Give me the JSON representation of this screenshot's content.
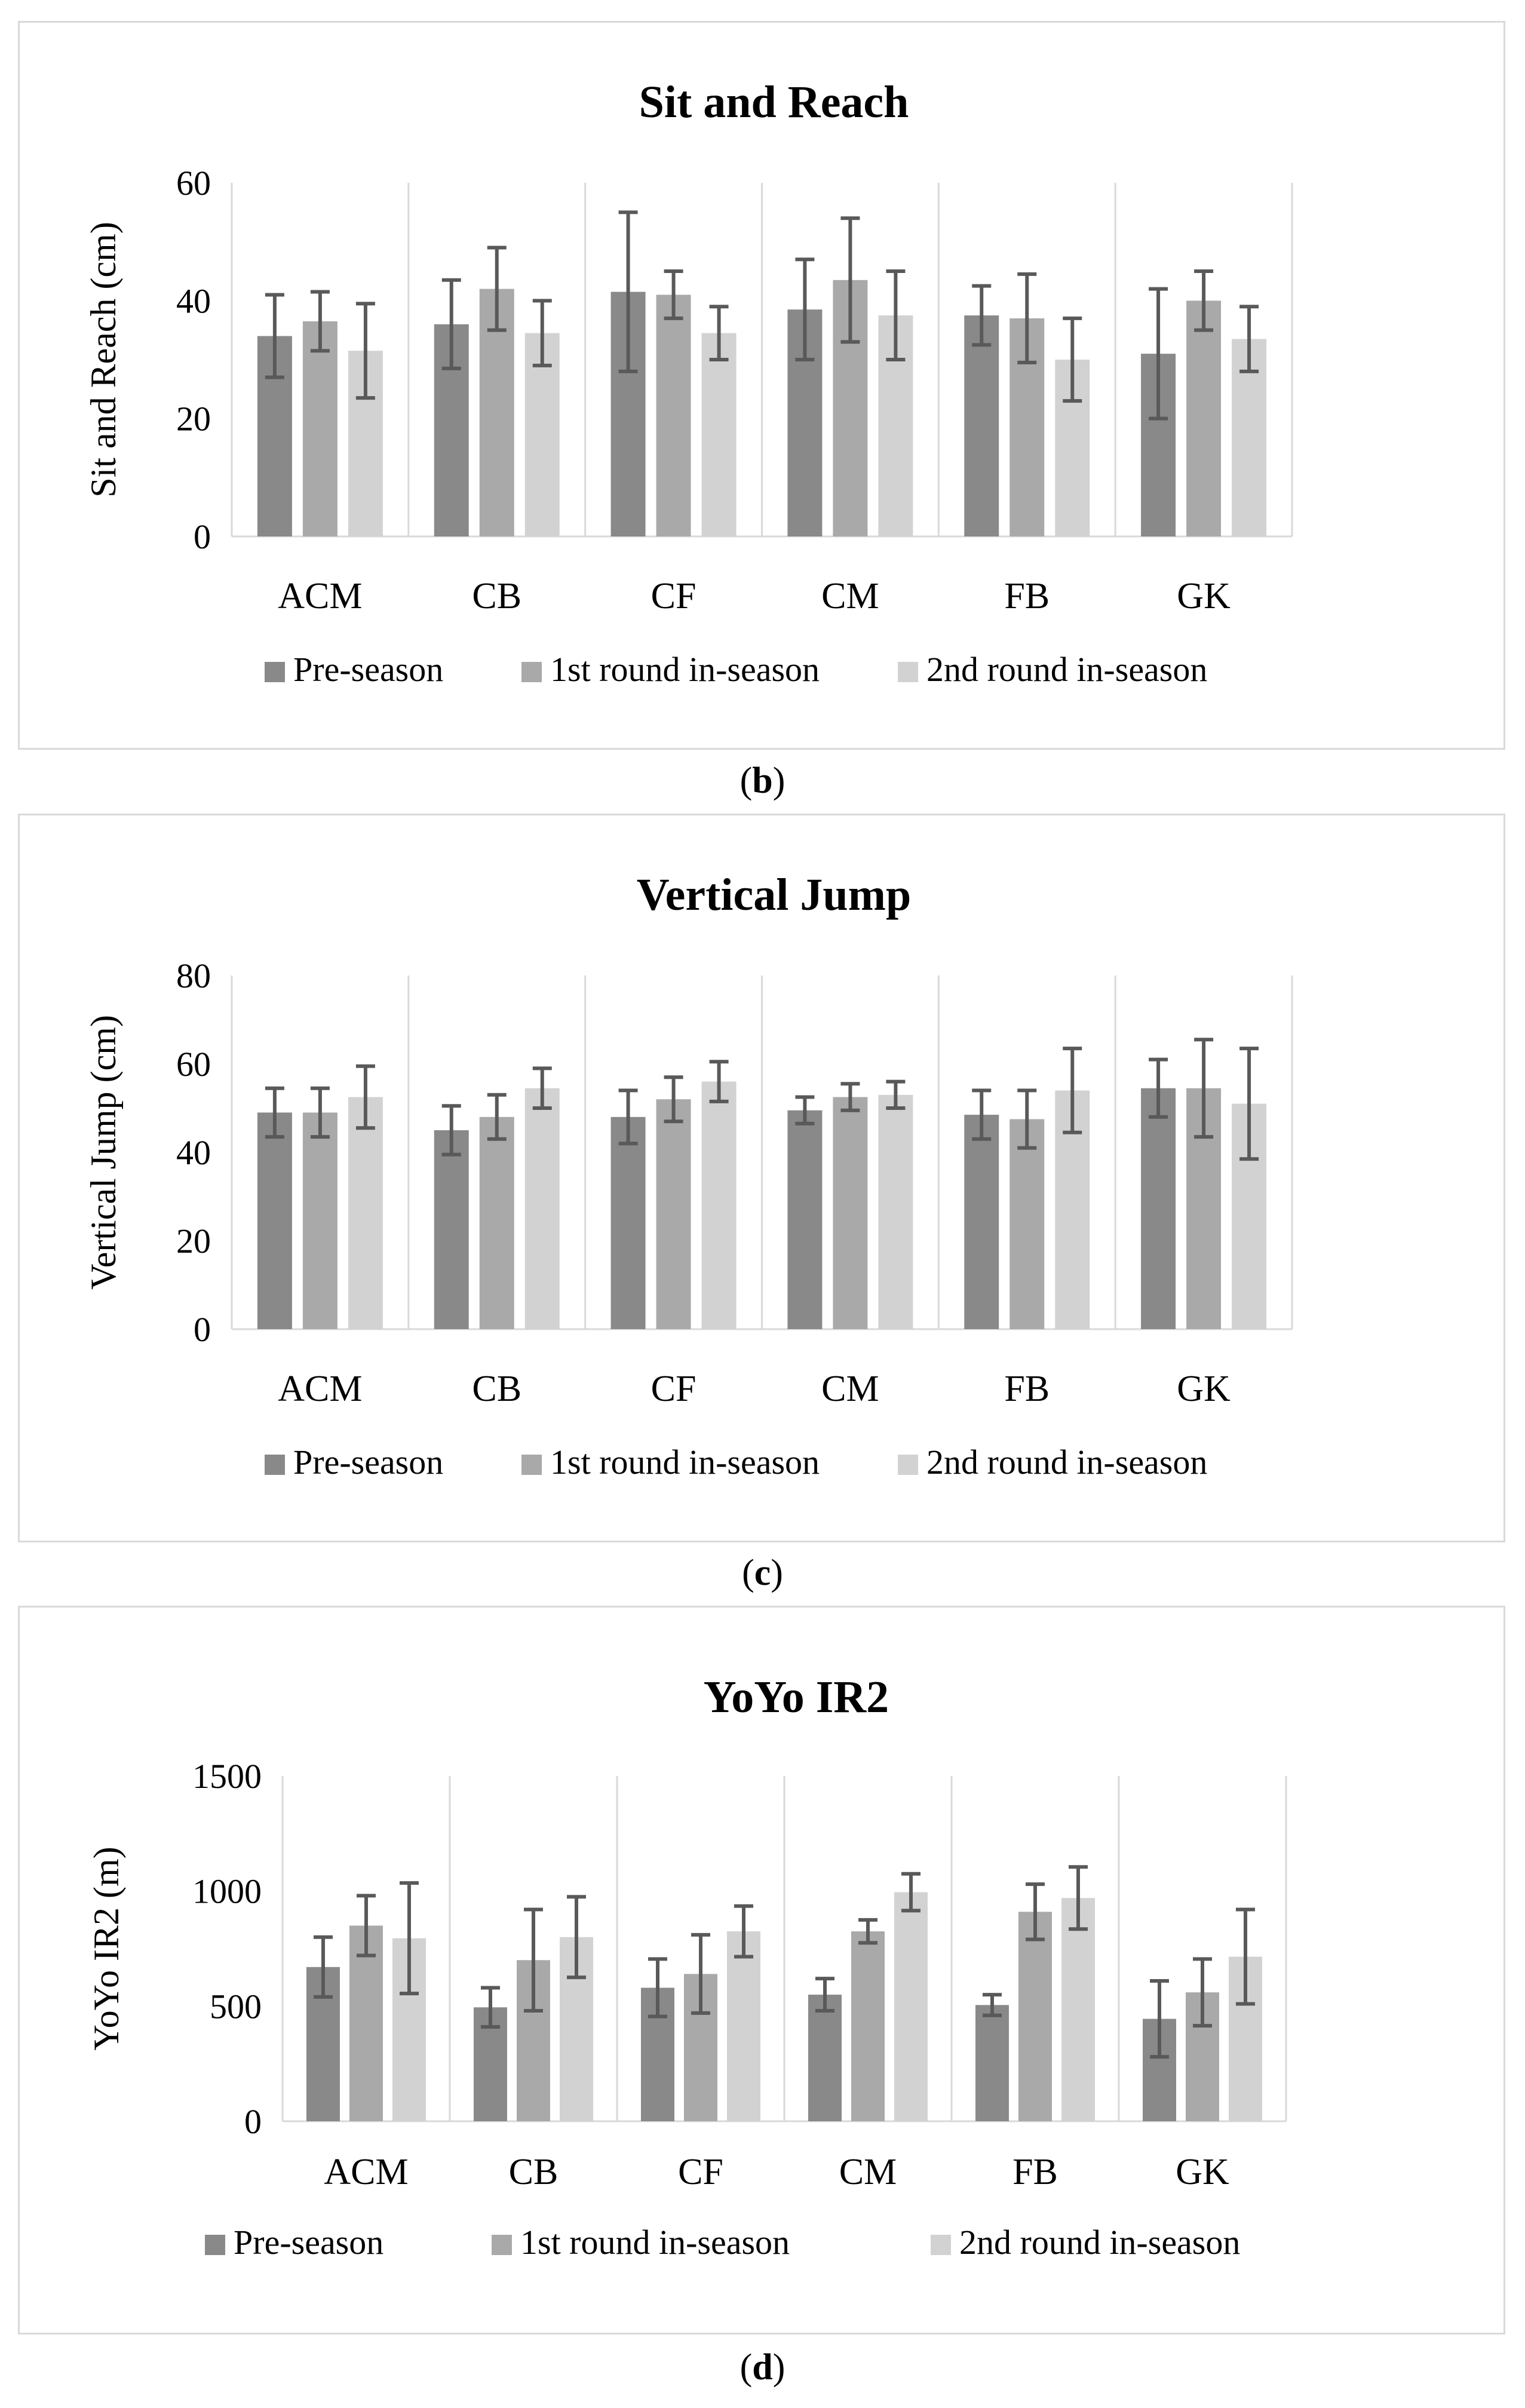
{
  "colors": {
    "pre": "#898989",
    "r1": "#a9a9a9",
    "r2": "#d2d2d2",
    "grid": "#d9d9d9",
    "axis": "#d9d9d9",
    "error": "#595959",
    "text": "#000000"
  },
  "captions": [
    {
      "open": "(",
      "letter": "b",
      "close": ")"
    },
    {
      "open": "(",
      "letter": "c",
      "close": ")"
    },
    {
      "open": "(",
      "letter": "d",
      "close": ")"
    }
  ],
  "chart_data": [
    {
      "type": "bar",
      "title": "Sit and Reach",
      "ylabel": "Sit and Reach (cm)",
      "xlabel": "",
      "ylim": [
        0,
        60
      ],
      "yticks": [
        0,
        20,
        40,
        60
      ],
      "categories": [
        "ACM",
        "CB",
        "CF",
        "CM",
        "FB",
        "GK"
      ],
      "legend": "bottom",
      "series": [
        {
          "name": "Pre-season",
          "values": [
            34,
            36,
            41.5,
            38.5,
            37.5,
            31
          ],
          "errors": [
            7,
            7.5,
            13.5,
            8.5,
            5,
            11
          ]
        },
        {
          "name": "1st round in-season",
          "values": [
            36.5,
            42,
            41,
            43.5,
            37,
            40
          ],
          "errors": [
            5,
            7,
            4,
            10.5,
            7.5,
            5
          ]
        },
        {
          "name": "2nd round in-season",
          "values": [
            31.5,
            34.5,
            34.5,
            37.5,
            30,
            33.5
          ],
          "errors": [
            8,
            5.5,
            4.5,
            7.5,
            7,
            5.5
          ]
        }
      ]
    },
    {
      "type": "bar",
      "title": "Vertical Jump",
      "ylabel": "Vertical Jump (cm)",
      "xlabel": "",
      "ylim": [
        0,
        80
      ],
      "yticks": [
        0,
        20,
        40,
        60,
        80
      ],
      "categories": [
        "ACM",
        "CB",
        "CF",
        "CM",
        "FB",
        "GK"
      ],
      "legend": "bottom",
      "series": [
        {
          "name": "Pre-season",
          "values": [
            49,
            45,
            48,
            49.5,
            48.5,
            54.5
          ],
          "errors": [
            5.5,
            5.5,
            6,
            3,
            5.5,
            6.5
          ]
        },
        {
          "name": "1st round in-season",
          "values": [
            49,
            48,
            52,
            52.5,
            47.5,
            54.5
          ],
          "errors": [
            5.5,
            5,
            5,
            3,
            6.5,
            11
          ]
        },
        {
          "name": "2nd round in-season",
          "values": [
            52.5,
            54.5,
            56,
            53,
            54,
            51
          ],
          "errors": [
            7,
            4.5,
            4.5,
            3,
            9.5,
            12.5
          ]
        }
      ]
    },
    {
      "type": "bar",
      "title": "YoYo IR2",
      "ylabel": "YoYo IR2 (m)",
      "xlabel": "",
      "ylim": [
        0,
        1500
      ],
      "yticks": [
        0,
        500,
        1000,
        1500
      ],
      "categories": [
        "ACM",
        "CB",
        "CF",
        "CM",
        "FB",
        "GK"
      ],
      "legend": "bottom",
      "series": [
        {
          "name": "Pre-season",
          "values": [
            670,
            495,
            580,
            550,
            505,
            445
          ],
          "errors": [
            130,
            85,
            125,
            70,
            45,
            165
          ]
        },
        {
          "name": "1st round in-season",
          "values": [
            850,
            700,
            640,
            825,
            910,
            560
          ],
          "errors": [
            130,
            220,
            170,
            50,
            120,
            145
          ]
        },
        {
          "name": "2nd round in-season",
          "values": [
            795,
            800,
            825,
            995,
            970,
            715
          ],
          "errors": [
            240,
            175,
            110,
            80,
            135,
            205
          ]
        }
      ]
    }
  ]
}
